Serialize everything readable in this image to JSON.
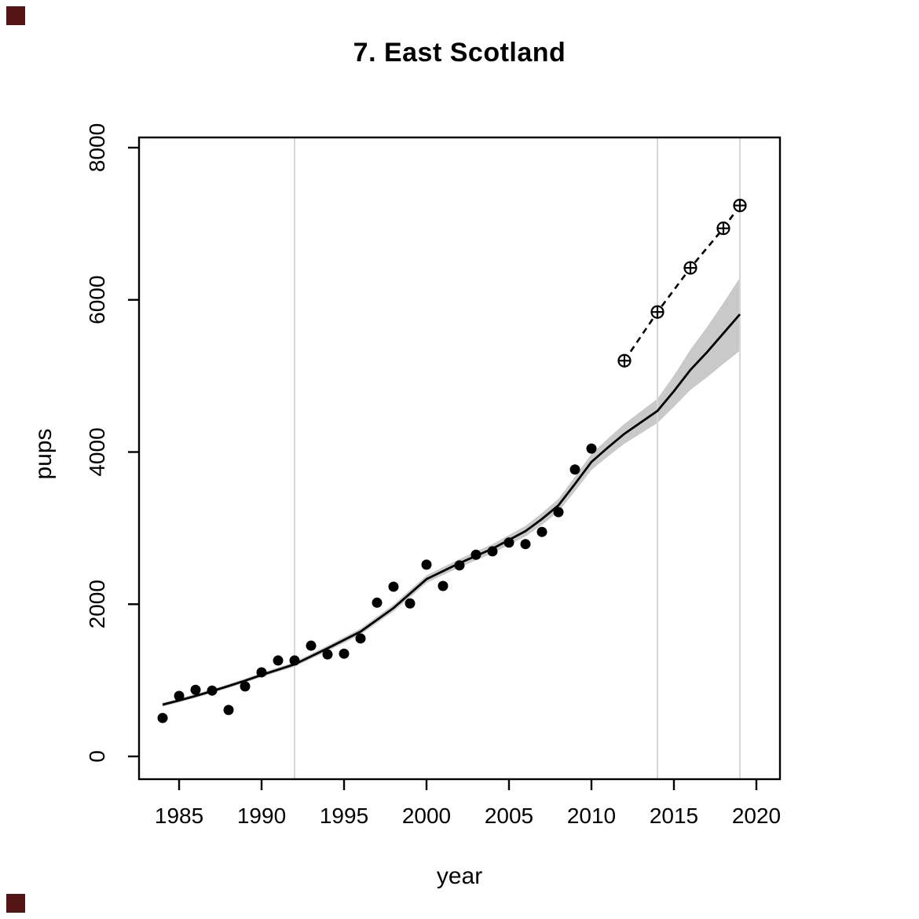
{
  "decorations": {
    "corner_marker_color": "#541414"
  },
  "chart_data": {
    "type": "scatter",
    "title": "7. East Scotland",
    "xlabel": "year",
    "ylabel": "pups",
    "x_ticks": [
      1985,
      1990,
      1995,
      2000,
      2005,
      2010,
      2015,
      2020
    ],
    "y_ticks": [
      0,
      2000,
      4000,
      6000,
      8000
    ],
    "xlim": [
      1982.57,
      2021.43
    ],
    "ylim": [
      -299.4,
      8133.9
    ],
    "vertical_gridlines": [
      1992,
      2014,
      2019
    ],
    "grid": "vertical-reference-lines-only",
    "legend": "none",
    "colors": {
      "band": "#c9c9c9",
      "gridline": "#d6d6d6",
      "points": "#000000",
      "lines": "#000000"
    },
    "series": [
      {
        "name": "observed_counts",
        "style": "filled-circle",
        "x": [
          1984,
          1985,
          1986,
          1987,
          1988,
          1989,
          1990,
          1991,
          1992,
          1993,
          1994,
          1995,
          1996,
          1997,
          1998,
          1999,
          2000,
          2001,
          2002,
          2003,
          2004,
          2005,
          2006,
          2007,
          2008,
          2009,
          2010
        ],
        "y": [
          505,
          795,
          875,
          865,
          610,
          920,
          1105,
          1260,
          1260,
          1455,
          1340,
          1350,
          1550,
          2020,
          2230,
          2010,
          2520,
          2240,
          2510,
          2650,
          2695,
          2810,
          2790,
          2950,
          3210,
          3770,
          4045
        ]
      },
      {
        "name": "independent_estimates",
        "style": "circle-plus-markers-dashed-line",
        "x": [
          2012,
          2014,
          2016,
          2018,
          2019
        ],
        "y": [
          5200,
          5840,
          6420,
          6940,
          7240
        ]
      },
      {
        "name": "model_fit",
        "style": "solid-line-with-confidence-band",
        "x": [
          1984,
          1985,
          1986,
          1987,
          1988,
          1989,
          1990,
          1991,
          1992,
          1993,
          1994,
          1995,
          1996,
          1997,
          1998,
          1999,
          2000,
          2001,
          2002,
          2003,
          2004,
          2005,
          2006,
          2007,
          2008,
          2009,
          2010,
          2011,
          2012,
          2013,
          2014,
          2015,
          2016,
          2017,
          2018,
          2019
        ],
        "mean": [
          680,
          735,
          795,
          858,
          925,
          995,
          1070,
          1140,
          1210,
          1315,
          1420,
          1530,
          1640,
          1795,
          1950,
          2140,
          2330,
          2435,
          2540,
          2635,
          2730,
          2845,
          2960,
          3120,
          3300,
          3580,
          3870,
          4060,
          4240,
          4390,
          4540,
          4800,
          5080,
          5310,
          5560,
          5810
        ],
        "half_width": [
          25,
          25,
          25,
          25,
          25,
          27,
          28,
          29,
          30,
          33,
          35,
          38,
          40,
          42,
          45,
          48,
          50,
          52,
          55,
          58,
          60,
          65,
          70,
          78,
          85,
          95,
          105,
          118,
          130,
          145,
          160,
          205,
          265,
          330,
          400,
          480
        ]
      }
    ]
  }
}
